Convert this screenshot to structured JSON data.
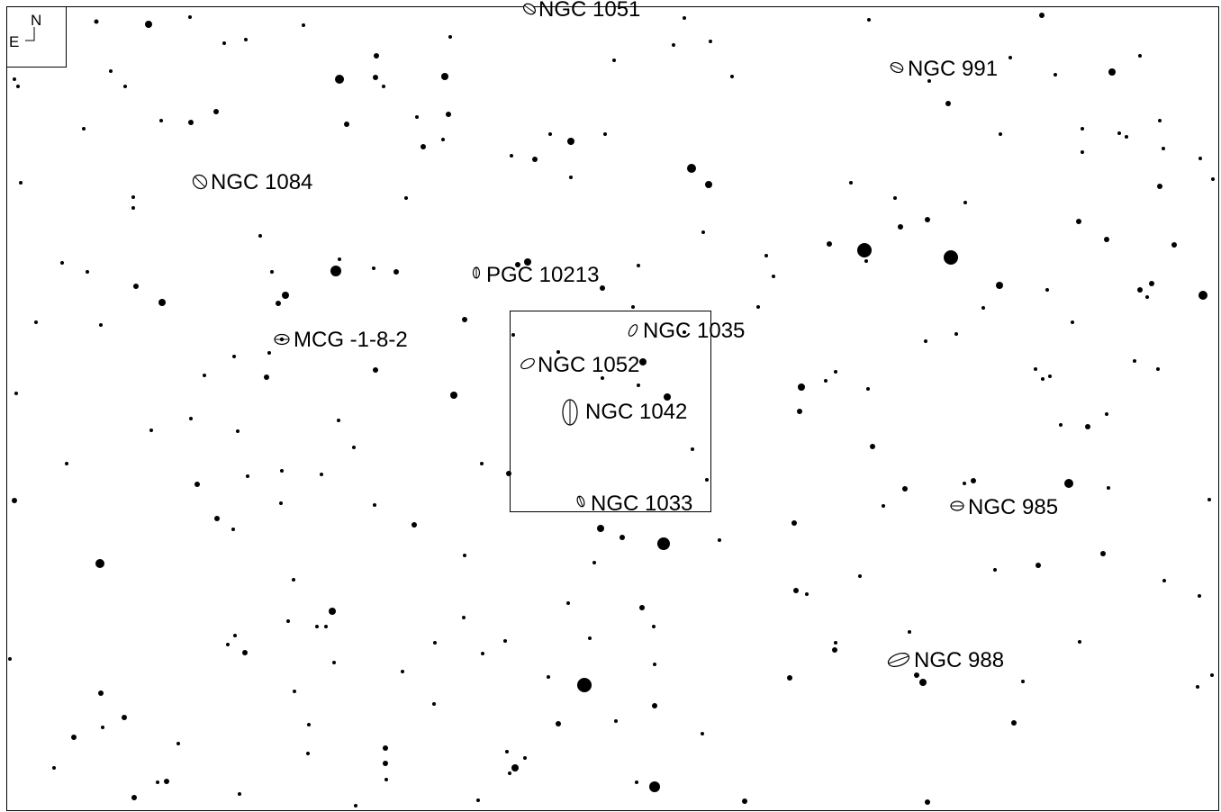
{
  "compass": {
    "north": "N",
    "east": "E"
  },
  "galaxies": [
    {
      "id": "ngc-1051",
      "label": "NGC 1051"
    },
    {
      "id": "ngc-991",
      "label": "NGC 991"
    },
    {
      "id": "ngc-1084",
      "label": "NGC 1084"
    },
    {
      "id": "pgc-10213",
      "label": "PGC 10213"
    },
    {
      "id": "ngc-1035",
      "label": "NGC 1035"
    },
    {
      "id": "mcg-1-8-2",
      "label": "MCG -1-8-2"
    },
    {
      "id": "ngc-1052",
      "label": "NGC 1052"
    },
    {
      "id": "ngc-1042",
      "label": "NGC 1042"
    },
    {
      "id": "ngc-1033",
      "label": "NGC 1033"
    },
    {
      "id": "ngc-985",
      "label": "NGC 985"
    },
    {
      "id": "ngc-988",
      "label": "NGC 988"
    }
  ],
  "colors": {
    "background": "#ffffff",
    "ink": "#000000"
  }
}
